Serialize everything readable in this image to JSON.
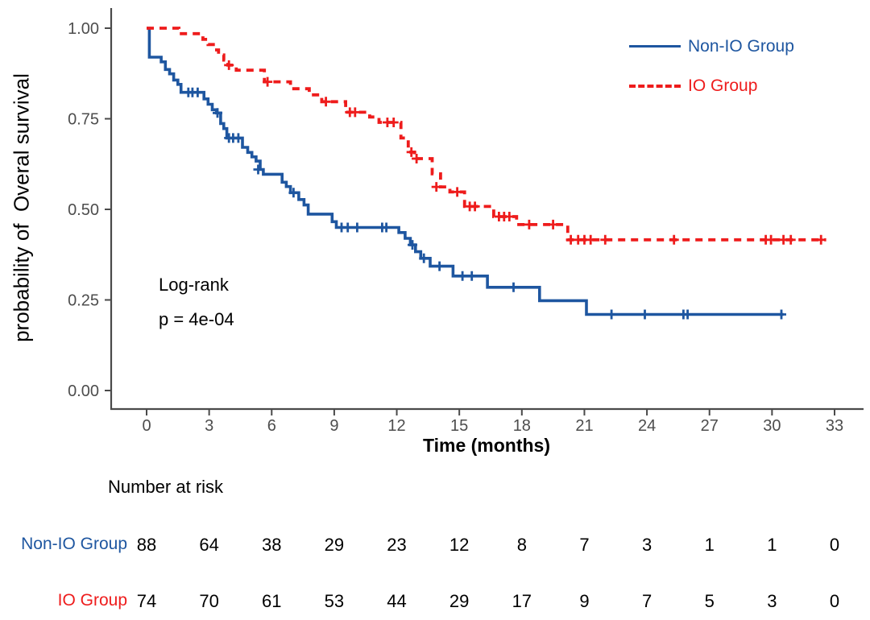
{
  "colors": {
    "non_io": "#1e56a0",
    "io": "#ee1c1c",
    "axis_line": "#4a4a4a",
    "tick_text": "#4d4d4d",
    "text": "#000000"
  },
  "chart_data": {
    "type": "line",
    "subtype": "kaplan-meier-step",
    "title": "",
    "ylabel": "probability of  Overal survival",
    "xlabel": "Time (months)",
    "xlim": [
      0,
      33
    ],
    "ylim": [
      0.0,
      1.0
    ],
    "grid": false,
    "legend_position": "top-right",
    "x_ticks": [
      0,
      3,
      6,
      9,
      12,
      15,
      18,
      21,
      24,
      27,
      30,
      33
    ],
    "y_ticks": [
      {
        "label": "1.00",
        "value": 1.0
      },
      {
        "label": "0.75",
        "value": 0.75
      },
      {
        "label": "0.50",
        "value": 0.5
      },
      {
        "label": "0.25",
        "value": 0.25
      },
      {
        "label": "0.00",
        "value": 0.0
      }
    ],
    "annotation": {
      "line1": "Log-rank",
      "line2": "p = 4e-04"
    },
    "series": [
      {
        "name": "Non-IO Group",
        "group": "non_io",
        "style": "solid",
        "end_time": 30.55,
        "steps": [
          [
            0,
            1.0
          ],
          [
            0.13,
            0.92
          ],
          [
            0.7,
            0.907
          ],
          [
            0.9,
            0.886
          ],
          [
            1.1,
            0.874
          ],
          [
            1.3,
            0.857
          ],
          [
            1.5,
            0.845
          ],
          [
            1.65,
            0.823
          ],
          [
            2.75,
            0.805
          ],
          [
            2.95,
            0.79
          ],
          [
            3.15,
            0.775
          ],
          [
            3.35,
            0.766
          ],
          [
            3.55,
            0.737
          ],
          [
            3.7,
            0.723
          ],
          [
            3.85,
            0.697
          ],
          [
            4.6,
            0.671
          ],
          [
            4.85,
            0.657
          ],
          [
            5.05,
            0.645
          ],
          [
            5.25,
            0.633
          ],
          [
            5.45,
            0.61
          ],
          [
            5.6,
            0.597
          ],
          [
            6.5,
            0.575
          ],
          [
            6.7,
            0.563
          ],
          [
            6.9,
            0.546
          ],
          [
            7.3,
            0.527
          ],
          [
            7.55,
            0.512
          ],
          [
            7.75,
            0.487
          ],
          [
            8.9,
            0.466
          ],
          [
            9.1,
            0.45
          ],
          [
            12.1,
            0.436
          ],
          [
            12.4,
            0.42
          ],
          [
            12.65,
            0.402
          ],
          [
            12.9,
            0.383
          ],
          [
            13.15,
            0.365
          ],
          [
            13.6,
            0.343
          ],
          [
            14.7,
            0.316
          ],
          [
            16.35,
            0.285
          ],
          [
            18.85,
            0.248
          ],
          [
            21.1,
            0.21
          ]
        ],
        "censors": [
          [
            2.0,
            0.823
          ],
          [
            2.2,
            0.823
          ],
          [
            2.45,
            0.823
          ],
          [
            3.4,
            0.766
          ],
          [
            3.95,
            0.697
          ],
          [
            4.15,
            0.697
          ],
          [
            4.4,
            0.697
          ],
          [
            5.35,
            0.61
          ],
          [
            7.05,
            0.546
          ],
          [
            9.35,
            0.45
          ],
          [
            9.65,
            0.45
          ],
          [
            10.1,
            0.45
          ],
          [
            11.3,
            0.45
          ],
          [
            11.5,
            0.45
          ],
          [
            12.75,
            0.402
          ],
          [
            13.3,
            0.365
          ],
          [
            14.05,
            0.343
          ],
          [
            15.15,
            0.316
          ],
          [
            15.6,
            0.316
          ],
          [
            17.6,
            0.285
          ],
          [
            22.3,
            0.21
          ],
          [
            23.9,
            0.21
          ],
          [
            25.75,
            0.21
          ],
          [
            25.95,
            0.21
          ],
          [
            30.45,
            0.21
          ]
        ]
      },
      {
        "name": "IO Group",
        "group": "io",
        "style": "dashed",
        "end_time": 32.6,
        "steps": [
          [
            0,
            1.0
          ],
          [
            1.55,
            0.985
          ],
          [
            2.7,
            0.969
          ],
          [
            2.95,
            0.955
          ],
          [
            3.2,
            0.94
          ],
          [
            3.45,
            0.926
          ],
          [
            3.7,
            0.912
          ],
          [
            3.9,
            0.898
          ],
          [
            4.3,
            0.884
          ],
          [
            5.65,
            0.852
          ],
          [
            6.9,
            0.833
          ],
          [
            7.8,
            0.816
          ],
          [
            8.4,
            0.797
          ],
          [
            9.55,
            0.768
          ],
          [
            10.7,
            0.755
          ],
          [
            11.15,
            0.74
          ],
          [
            12.2,
            0.697
          ],
          [
            12.55,
            0.658
          ],
          [
            12.85,
            0.64
          ],
          [
            13.7,
            0.598
          ],
          [
            14.1,
            0.562
          ],
          [
            14.55,
            0.548
          ],
          [
            15.25,
            0.508
          ],
          [
            16.65,
            0.48
          ],
          [
            17.75,
            0.458
          ],
          [
            20.2,
            0.416
          ]
        ],
        "censors": [
          [
            3.95,
            0.898
          ],
          [
            5.8,
            0.852
          ],
          [
            8.6,
            0.797
          ],
          [
            9.75,
            0.768
          ],
          [
            10.0,
            0.768
          ],
          [
            11.55,
            0.74
          ],
          [
            11.85,
            0.74
          ],
          [
            12.7,
            0.658
          ],
          [
            12.95,
            0.64
          ],
          [
            13.9,
            0.562
          ],
          [
            14.9,
            0.548
          ],
          [
            15.5,
            0.508
          ],
          [
            15.75,
            0.508
          ],
          [
            16.9,
            0.48
          ],
          [
            17.15,
            0.48
          ],
          [
            17.4,
            0.48
          ],
          [
            18.35,
            0.458
          ],
          [
            19.5,
            0.458
          ],
          [
            20.35,
            0.416
          ],
          [
            20.7,
            0.416
          ],
          [
            21.0,
            0.416
          ],
          [
            21.3,
            0.416
          ],
          [
            22.0,
            0.416
          ],
          [
            25.3,
            0.416
          ],
          [
            29.7,
            0.416
          ],
          [
            29.95,
            0.416
          ],
          [
            30.55,
            0.416
          ],
          [
            30.9,
            0.416
          ],
          [
            32.35,
            0.416
          ]
        ]
      }
    ]
  },
  "risk_table": {
    "title": "Number at risk",
    "time_points": [
      0,
      3,
      6,
      9,
      12,
      15,
      18,
      21,
      24,
      27,
      30,
      33
    ],
    "rows": [
      {
        "label": "Non-IO Group",
        "group": "non_io",
        "counts": [
          88,
          64,
          38,
          29,
          23,
          12,
          8,
          7,
          3,
          1,
          1,
          0
        ]
      },
      {
        "label": "IO Group",
        "group": "io",
        "counts": [
          74,
          70,
          61,
          53,
          44,
          29,
          17,
          9,
          7,
          5,
          3,
          0
        ]
      }
    ]
  }
}
